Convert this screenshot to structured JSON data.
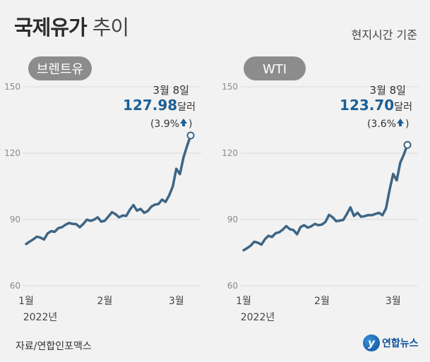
{
  "header": {
    "title_main": "국제유가",
    "title_sub": "추이",
    "time_basis": "현지시간 기준"
  },
  "footer": {
    "source": "자료/연합인포맥스",
    "logo_text": "연합뉴스"
  },
  "chart_data": [
    {
      "type": "line",
      "title": "브렌트유",
      "ylim": [
        60,
        150
      ],
      "yticks": [
        60,
        90,
        120,
        150
      ],
      "xticks": [
        {
          "label": "1월",
          "x": 0
        },
        {
          "label": "2월",
          "x": 22
        },
        {
          "label": "3월",
          "x": 42
        }
      ],
      "x_sublabel": "2022년",
      "color": "#3d6585",
      "series": [
        {
          "values": [
            78.9,
            80.0,
            81.0,
            82.2,
            81.8,
            80.9,
            83.7,
            84.7,
            84.4,
            86.1,
            86.5,
            87.6,
            88.4,
            88.0,
            87.9,
            86.5,
            88.0,
            89.9,
            89.4,
            89.9,
            91.0,
            89.0,
            89.4,
            91.3,
            93.3,
            92.4,
            91.0,
            91.8,
            91.6,
            94.4,
            96.5,
            94.0,
            94.8,
            93.0,
            93.8,
            95.8,
            96.7,
            97.0,
            99.0,
            97.9,
            100.9,
            104.9,
            112.9,
            110.5,
            118.1,
            123.2,
            127.98
          ]
        }
      ],
      "annotation": {
        "date": "3월 8일",
        "value": "127.98",
        "unit": "달러",
        "change": "(3.9%",
        "change_color": "#1c5f95",
        "value_color": "#1c5f95"
      }
    },
    {
      "type": "line",
      "title": "WTI",
      "ylim": [
        60,
        150
      ],
      "yticks": [
        60,
        90,
        120,
        150
      ],
      "xticks": [
        {
          "label": "1월",
          "x": 0
        },
        {
          "label": "2월",
          "x": 22
        },
        {
          "label": "3월",
          "x": 42
        }
      ],
      "x_sublabel": "2022년",
      "color": "#3d6585",
      "series": [
        {
          "values": [
            76.1,
            77.0,
            78.2,
            79.9,
            79.5,
            78.6,
            81.1,
            82.6,
            82.1,
            83.8,
            84.2,
            85.4,
            87.0,
            85.6,
            85.2,
            83.3,
            86.6,
            87.4,
            86.3,
            86.9,
            88.0,
            87.4,
            87.7,
            88.9,
            92.1,
            91.0,
            89.2,
            89.5,
            89.8,
            92.5,
            95.5,
            91.6,
            93.0,
            91.2,
            91.5,
            92.0,
            91.9,
            92.5,
            93.0,
            91.9,
            95.0,
            103.4,
            110.6,
            107.7,
            115.7,
            119.4,
            123.7
          ]
        }
      ],
      "annotation": {
        "date": "3월 8일",
        "value": "123.70",
        "unit": "달러",
        "change": "(3.6%",
        "change_color": "#1c5f95",
        "value_color": "#1c5f95"
      }
    }
  ]
}
